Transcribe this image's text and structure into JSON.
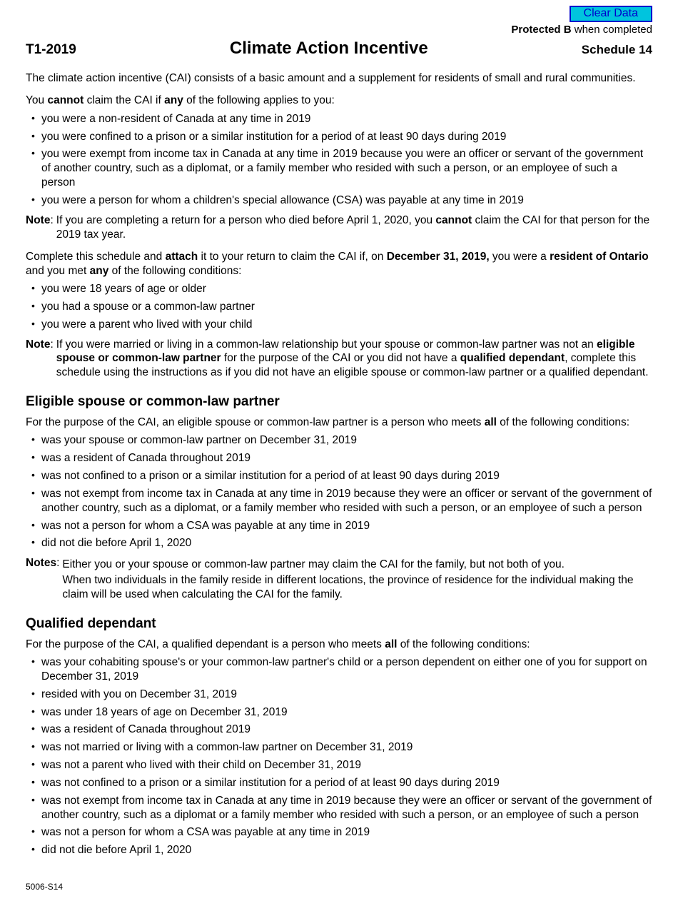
{
  "buttons": {
    "clear": "Clear Data"
  },
  "header": {
    "protected_bold": "Protected B",
    "protected_rest": " when completed",
    "form_code": "T1-2019",
    "title": "Climate Action Incentive",
    "schedule": "Schedule 14"
  },
  "intro": "The climate action incentive (CAI) consists of a basic amount and a supplement for residents of small and rural communities.",
  "cannot_pre": "You ",
  "cannot_b1": "cannot",
  "cannot_mid": " claim the CAI if ",
  "cannot_b2": "any",
  "cannot_post": " of the following applies to you:",
  "cannot_list": [
    "you were a non-resident of Canada at any time in 2019",
    "you were confined to a prison or a similar institution for a period of at least 90 days during 2019",
    "you were exempt from income tax in Canada at any time in 2019 because you were an officer or servant of the government of another country, such as a diplomat, or a family member who resided with such a person, or an employee of such a person",
    "you were a person for whom a children's special allowance (CSA) was payable at any time in 2019"
  ],
  "note1": {
    "label": "Note",
    "pre": "If you are completing a return for a person who died before April 1, 2020, you ",
    "b": "cannot",
    "post": " claim the CAI for that person for the 2019 tax year."
  },
  "attach": {
    "p1": "Complete this schedule and ",
    "b1": "attach",
    "p2": " it to your return to claim the CAI if, on ",
    "b2": "December 31, 2019,",
    "p3": " you were a ",
    "b3": "resident of Ontario",
    "p4": " and you met ",
    "b4": "any",
    "p5": " of the following conditions:"
  },
  "cond_list": [
    "you were 18 years of age or older",
    "you had a spouse or a common-law partner",
    "you were a parent who lived with your child"
  ],
  "note2": {
    "label": "Note",
    "p1": "If you were married or living in a common-law relationship but your spouse or common-law partner was not an ",
    "b1": "eligible spouse or common-law partner",
    "p2": " for the purpose of the CAI or you did not have a ",
    "b2": "qualified dependant",
    "p3": ", complete this schedule using the instructions as if you did not have an eligible spouse or common-law partner or a qualified dependant."
  },
  "spouse": {
    "heading": "Eligible spouse or common-law partner",
    "intro_pre": "For the purpose of the CAI, an eligible spouse or common-law partner is a person who meets ",
    "intro_b": "all",
    "intro_post": " of the following conditions:",
    "list": [
      "was your spouse or common-law partner on December 31, 2019",
      "was a resident of Canada throughout 2019",
      "was not confined to a prison or a similar institution for a period of at least 90 days during 2019",
      "was not exempt from income tax in Canada at any time in 2019 because they were an officer or servant of the government of another country, such as a diplomat, or a family member who resided with such a person, or an employee of such a person",
      "was not a person for whom a CSA was payable at any time in 2019",
      "did not die before April 1, 2020"
    ],
    "notes_label": "Notes",
    "notes_a": "Either you or your spouse or common-law partner may claim the CAI for the family, but not both of you.",
    "notes_b": "When two individuals in the family reside in different locations, the province of residence for the individual making the claim will be used when calculating the CAI for the family."
  },
  "dependant": {
    "heading": "Qualified dependant",
    "intro_pre": "For the purpose of the CAI, a qualified dependant is a person who meets ",
    "intro_b": "all",
    "intro_post": " of the following conditions:",
    "list": [
      "was your cohabiting spouse's or your common-law partner's child or a person dependent on either one of you for support on December 31, 2019",
      "resided with you on December 31, 2019",
      "was under 18 years of age on December 31, 2019",
      "was a resident of Canada throughout 2019",
      "was not married or living with a common-law partner on December 31, 2019",
      "was not a parent who lived with their child on December 31, 2019",
      "was not confined to a prison or a similar institution for a period of at least 90 days during 2019",
      "was not exempt from income tax in Canada at any time in 2019 because they were an officer or servant of the government of another country, such as a diplomat or a family member who resided with such a person, or an employee of such a person",
      "was not a person for whom a CSA was payable at any time in 2019",
      "did not die before April 1, 2020"
    ]
  },
  "footer": "5006-S14"
}
